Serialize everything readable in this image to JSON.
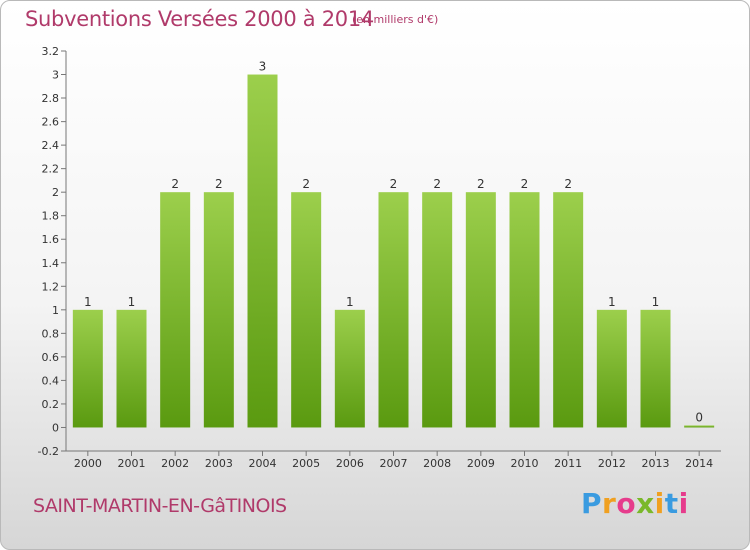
{
  "header": {
    "title": "Subventions Versées 2000 à 2014",
    "unit": "(en milliers d'€)"
  },
  "footer": {
    "commune": "SAINT-MARTIN-EN-GâTINOIS",
    "logo": "Proxiti",
    "logo_colors": [
      "#3a9be0",
      "#f0a020",
      "#e63c8c",
      "#7ab82a",
      "#f0a020",
      "#3a9be0",
      "#e63c8c"
    ]
  },
  "colors": {
    "bar_top": "#9ccf4c",
    "bar_bottom": "#5a9a10",
    "title": "#b03a6a"
  },
  "chart_data": {
    "type": "bar",
    "categories": [
      "2000",
      "2001",
      "2002",
      "2003",
      "2004",
      "2005",
      "2006",
      "2007",
      "2008",
      "2009",
      "2010",
      "2011",
      "2012",
      "2013",
      "2014"
    ],
    "values": [
      1,
      1,
      2,
      2,
      3,
      2,
      1,
      2,
      2,
      2,
      2,
      2,
      1,
      1,
      0
    ],
    "data_labels": [
      "1",
      "1",
      "2",
      "2",
      "3",
      "2",
      "1",
      "2",
      "2",
      "2",
      "2",
      "2",
      "1",
      "1",
      "0"
    ],
    "title": "Subventions Versées 2000 à 2014",
    "xlabel": "",
    "ylabel": "",
    "ylim": [
      -0.2,
      3.2
    ],
    "yticks": [
      -0.2,
      0,
      0.2,
      0.4,
      0.6,
      0.8,
      1,
      1.2,
      1.4,
      1.6,
      1.8,
      2,
      2.2,
      2.4,
      2.6,
      2.8,
      3,
      3.2
    ],
    "ytick_labels": [
      "-0.2",
      "0",
      "0.2",
      "0.4",
      "0.6",
      "0.8",
      "1",
      "1.2",
      "1.4",
      "1.6",
      "1.8",
      "2",
      "2.2",
      "2.4",
      "2.6",
      "2.8",
      "3",
      "3.2"
    ],
    "grid": false,
    "legend": "none"
  }
}
